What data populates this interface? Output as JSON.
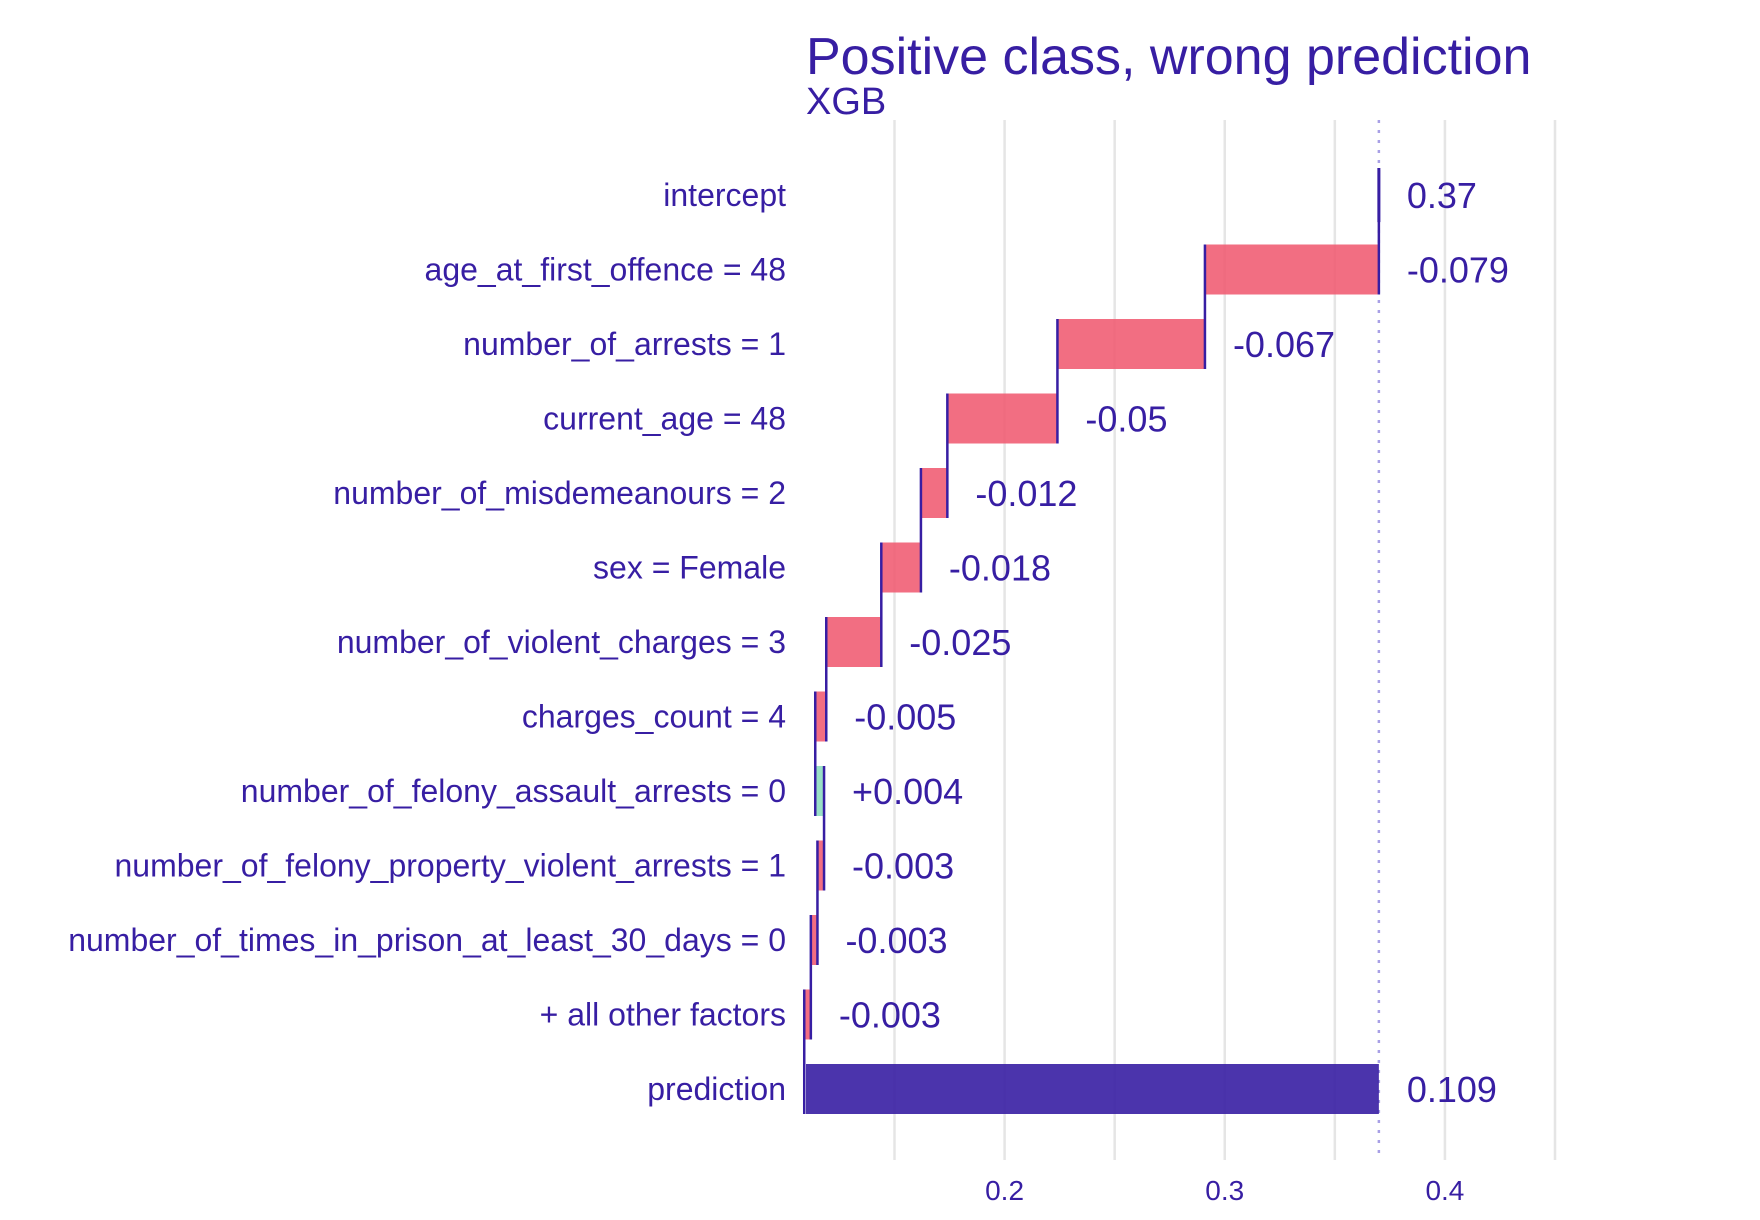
{
  "chart_data": {
    "type": "bar",
    "subtype": "waterfall (break-down)",
    "title": "Positive class, wrong prediction",
    "subtitle": "XGB",
    "xlim": [
      0.1098,
      0.45
    ],
    "x_ticks": [
      0.2,
      0.3,
      0.4
    ],
    "x_tick_labels": [
      "0.2",
      "0.3",
      "0.4"
    ],
    "gridlines": [
      0.15,
      0.2,
      0.25,
      0.3,
      0.35,
      0.4,
      0.45
    ],
    "grid": true,
    "colors": {
      "text": "#371ea3",
      "negative": "#f05a71",
      "positive": "#8bdcbe",
      "prediction": "#371ea3",
      "grid": "#e5e5e5",
      "connector": "#371ea3",
      "reference_line": "#a8a0e6"
    },
    "rows": [
      {
        "label": "intercept",
        "kind": "intercept",
        "start": 0.37,
        "end": 0.37,
        "value_label": "0.37"
      },
      {
        "label": "age_at_first_offence = 48",
        "kind": "negative",
        "start": 0.37,
        "end": 0.291,
        "value_label": "-0.079"
      },
      {
        "label": "number_of_arrests = 1",
        "kind": "negative",
        "start": 0.291,
        "end": 0.224,
        "value_label": "-0.067"
      },
      {
        "label": "current_age = 48",
        "kind": "negative",
        "start": 0.224,
        "end": 0.174,
        "value_label": "-0.05"
      },
      {
        "label": "number_of_misdemeanours = 2",
        "kind": "negative",
        "start": 0.174,
        "end": 0.162,
        "value_label": "-0.012"
      },
      {
        "label": "sex = Female",
        "kind": "negative",
        "start": 0.162,
        "end": 0.144,
        "value_label": "-0.018"
      },
      {
        "label": "number_of_violent_charges = 3",
        "kind": "negative",
        "start": 0.144,
        "end": 0.119,
        "value_label": "-0.025"
      },
      {
        "label": "charges_count = 4",
        "kind": "negative",
        "start": 0.119,
        "end": 0.114,
        "value_label": "-0.005"
      },
      {
        "label": "number_of_felony_assault_arrests = 0",
        "kind": "positive",
        "start": 0.114,
        "end": 0.118,
        "value_label": "+0.004"
      },
      {
        "label": "number_of_felony_property_violent_arrests = 1",
        "kind": "negative",
        "start": 0.118,
        "end": 0.115,
        "value_label": "-0.003"
      },
      {
        "label": "number_of_times_in_prison_at_least_30_days = 0",
        "kind": "negative",
        "start": 0.115,
        "end": 0.112,
        "value_label": "-0.003"
      },
      {
        "label": "+ all other factors",
        "kind": "negative",
        "start": 0.112,
        "end": 0.109,
        "value_label": "-0.003"
      },
      {
        "label": "prediction",
        "kind": "prediction",
        "start": 0.1098,
        "end": 0.37,
        "value_label": "0.109"
      }
    ],
    "reference_line": 0.37
  }
}
